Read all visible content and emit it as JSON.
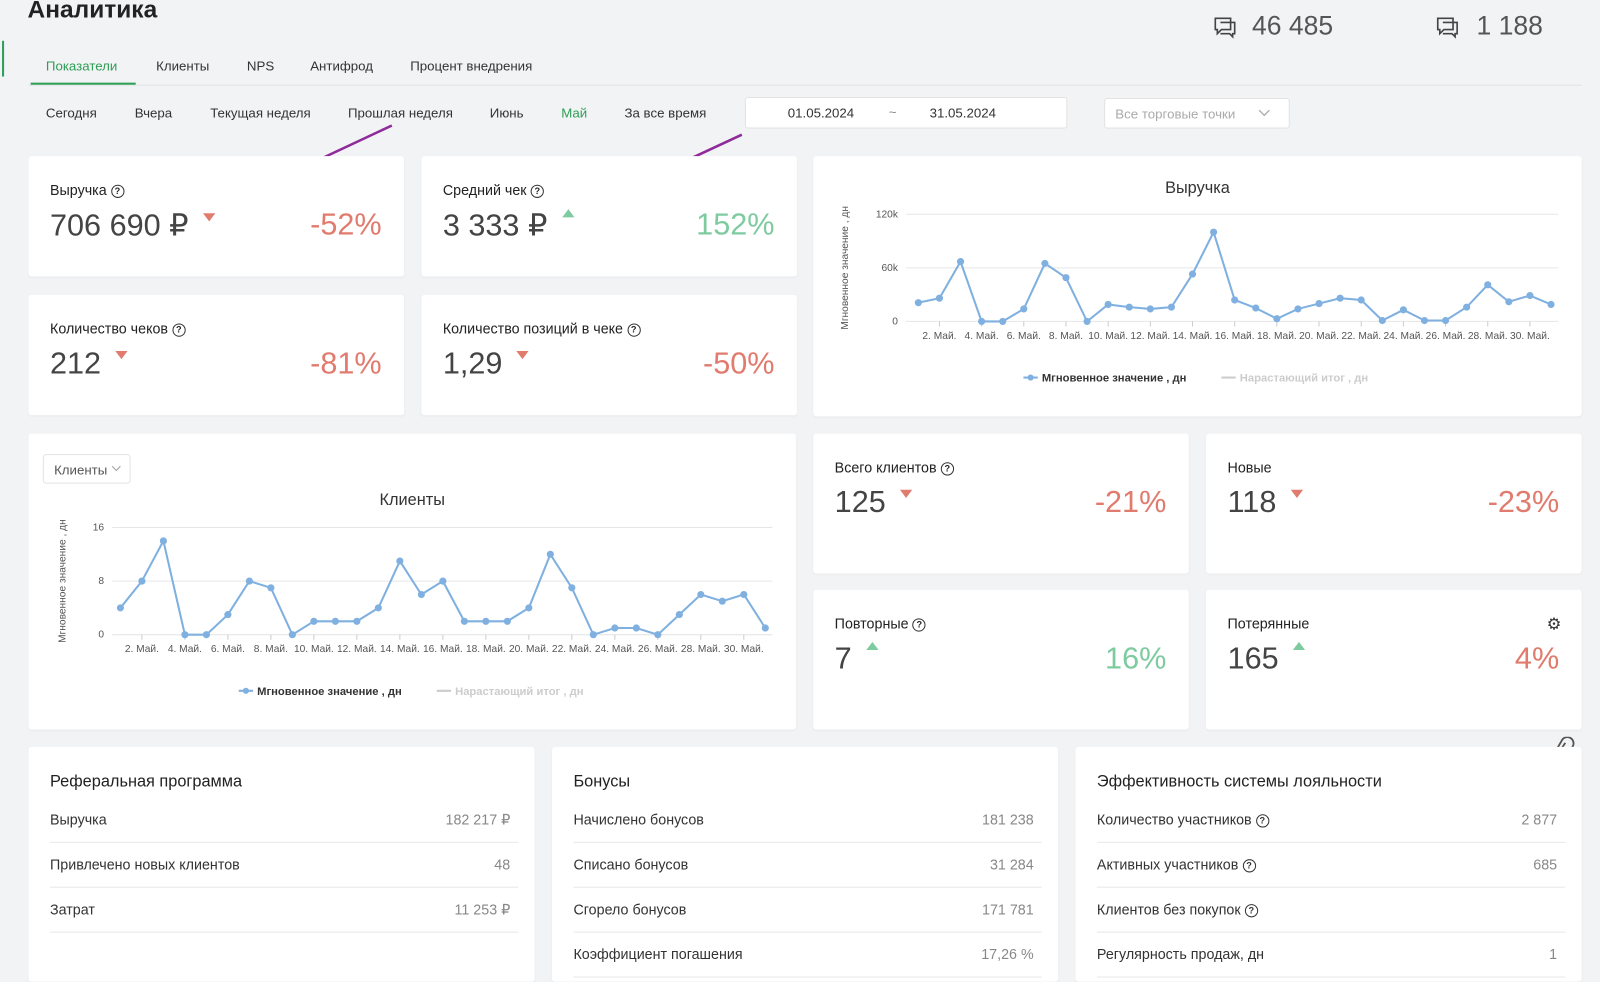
{
  "header": {
    "title": "Аналитика",
    "counters": [
      "46 485",
      "1 188"
    ]
  },
  "tabs": [
    "Показатели",
    "Клиенты",
    "NPS",
    "Антифрод",
    "Процент внедрения"
  ],
  "periods": [
    "Сегодня",
    "Вчера",
    "Текущая неделя",
    "Прошлая неделя",
    "Июнь",
    "Май",
    "За все время"
  ],
  "date_from": "01.05.2024",
  "date_sep": "~",
  "date_to": "31.05.2024",
  "store_select": "Все торговые точки",
  "kpis": [
    {
      "title": "Выручка",
      "value": "706 690 ₽",
      "change": "-52%",
      "trend": "down"
    },
    {
      "title": "Средний чек",
      "value": "3 333 ₽",
      "change": "152%",
      "trend": "up"
    },
    {
      "title": "Количество чеков",
      "value": "212",
      "change": "-81%",
      "trend": "down"
    },
    {
      "title": "Количество позиций в чеке",
      "value": "1,29",
      "change": "-50%",
      "trend": "down"
    }
  ],
  "revenue_chart": {
    "type": "line",
    "title": "Выручка",
    "y_label": "Мгновенное значение , дн",
    "categories": [
      null,
      "2. Май.",
      null,
      "4. Май.",
      null,
      "6. Май.",
      null,
      "8. Май.",
      null,
      "10. Май.",
      null,
      "12. Май.",
      null,
      "14. Май.",
      null,
      "16. Май.",
      null,
      "18. Май.",
      null,
      "20. Май.",
      null,
      "22. Май.",
      null,
      "24. Май.",
      null,
      "26. Май.",
      null,
      "28. Май.",
      null,
      "30. Май.",
      null
    ],
    "series": [
      {
        "name": "Мгновенное значение , дн",
        "color": "#7fb0e0",
        "values": [
          21000,
          26000,
          67000,
          0,
          0,
          14000,
          65000,
          49000,
          0,
          19000,
          16000,
          14000,
          16000,
          53000,
          100000,
          24000,
          15000,
          3000,
          14000,
          20000,
          26000,
          24000,
          1000,
          13000,
          1000,
          1000,
          16000,
          41000,
          22000,
          29000,
          19000
        ]
      }
    ],
    "hidden_legend": "Нарастающий итог , дн",
    "ylim": [
      0,
      120000
    ],
    "yticks": [
      0,
      {
        "value": 60000,
        "label": "60k"
      },
      {
        "value": 120000,
        "label": "120k"
      }
    ],
    "grid": true
  },
  "clients_chart": {
    "type": "line",
    "dropdown": "Клиенты",
    "title": "Клиенты",
    "y_label": "Мгновенное значение , дн",
    "categories": [
      null,
      "2. Май.",
      null,
      "4. Май.",
      null,
      "6. Май.",
      null,
      "8. Май.",
      null,
      "10. Май.",
      null,
      "12. Май.",
      null,
      "14. Май.",
      null,
      "16. Май.",
      null,
      "18. Май.",
      null,
      "20. Май.",
      null,
      "22. Май.",
      null,
      "24. Май.",
      null,
      "26. Май.",
      null,
      "28. Май.",
      null,
      "30. Май.",
      null
    ],
    "series": [
      {
        "name": "Мгновенное значение , дн",
        "color": "#7fb0e0",
        "values": [
          4,
          8,
          14,
          0,
          0,
          3,
          8,
          7,
          0,
          2,
          2,
          2,
          4,
          11,
          6,
          8,
          2,
          2,
          2,
          4,
          12,
          7,
          0,
          1,
          1,
          0,
          3,
          6,
          5,
          6,
          1
        ]
      }
    ],
    "hidden_legend": "Нарастающий итог , дн",
    "ylim": [
      0,
      16
    ],
    "yticks": [
      0,
      8,
      16
    ],
    "grid": true
  },
  "client_kpis": [
    {
      "title": "Всего клиентов",
      "value": "125",
      "change": "-21%",
      "trend": "down",
      "help": true
    },
    {
      "title": "Новые",
      "value": "118",
      "change": "-23%",
      "trend": "down",
      "help": false
    },
    {
      "title": "Повторные",
      "value": "7",
      "change": "16%",
      "trend": "up",
      "help": true
    },
    {
      "title": "Потерянные",
      "value": "165",
      "change": "4%",
      "trend": "up",
      "help": false,
      "bad": true
    }
  ],
  "panels": [
    {
      "title": "Реферальная программа",
      "rows": [
        {
          "label": "Выручка",
          "value": "182 217 ₽"
        },
        {
          "label": "Привлечено новых клиентов",
          "value": "48"
        },
        {
          "label": "Затрат",
          "value": "11 253 ₽"
        }
      ]
    },
    {
      "title": "Бонусы",
      "rows": [
        {
          "label": "Начислено бонусов",
          "value": "181 238"
        },
        {
          "label": "Списано бонусов",
          "value": "31 284"
        },
        {
          "label": "Сгорело бонусов",
          "value": "171 781"
        },
        {
          "label": "Коэффициент погашения",
          "value": "17,26 %"
        }
      ]
    },
    {
      "title": "Эффективность системы лояльности",
      "rows": [
        {
          "label": "Количество участников",
          "value": "2 877",
          "help": true
        },
        {
          "label": "Активных участников",
          "value": "685",
          "help": true
        },
        {
          "label": "Клиентов без покупок",
          "help": true
        },
        {
          "label": "Регулярность продаж, дн",
          "value": "1"
        }
      ]
    }
  ]
}
